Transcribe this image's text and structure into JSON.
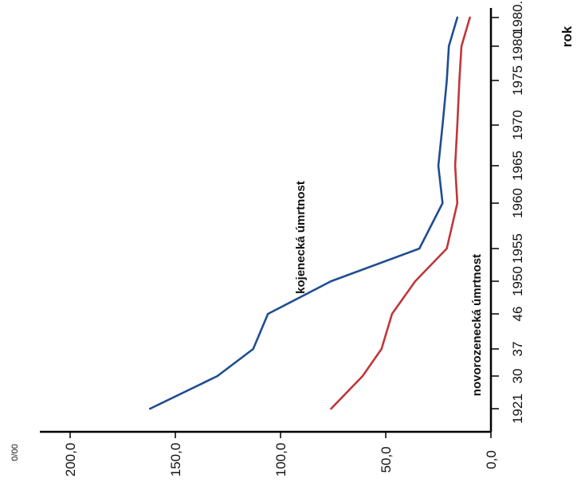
{
  "chart_data": {
    "type": "line",
    "orientation": "rotated-90-clockwise",
    "unit_label": "0/00",
    "x_axis_title": "rok",
    "x_tick_labels": [
      "1921",
      "30",
      "37",
      "46",
      "1950",
      "1955",
      "1960",
      "1965",
      "1970",
      "1975",
      "1980",
      "1980."
    ],
    "y_tick_labels": [
      "0,0",
      "50,0",
      "100,0",
      "150,0",
      "200,0"
    ],
    "ylim": [
      0,
      210
    ],
    "series": [
      {
        "name": "kojenecká úmrtnost",
        "color": "#1f4e8f",
        "points": [
          {
            "x": "1921",
            "y": 162
          },
          {
            "x": "30",
            "y": 130
          },
          {
            "x": "37",
            "y": 113
          },
          {
            "x": "46",
            "y": 106
          },
          {
            "x": "1950",
            "y": 76
          },
          {
            "x": "1955",
            "y": 34
          },
          {
            "x": "1960",
            "y": 23
          },
          {
            "x": "1965",
            "y": 25
          },
          {
            "x": "1970",
            "y": 23
          },
          {
            "x": "1975",
            "y": 21
          },
          {
            "x": "1980",
            "y": 20
          },
          {
            "x": "1980.",
            "y": 16
          }
        ]
      },
      {
        "name": "novorozenecká úmrtnost",
        "color": "#c0363a",
        "points": [
          {
            "x": "1921",
            "y": 76
          },
          {
            "x": "30",
            "y": 61
          },
          {
            "x": "37",
            "y": 52
          },
          {
            "x": "46",
            "y": 47
          },
          {
            "x": "1950",
            "y": 36
          },
          {
            "x": "1955",
            "y": 21
          },
          {
            "x": "1960",
            "y": 16
          },
          {
            "x": "1965",
            "y": 17
          },
          {
            "x": "1970",
            "y": 16
          },
          {
            "x": "1975",
            "y": 15
          },
          {
            "x": "1980",
            "y": 14
          },
          {
            "x": "1980.",
            "y": 10
          }
        ]
      }
    ],
    "grid": false,
    "legend": "inline labels along lines"
  }
}
